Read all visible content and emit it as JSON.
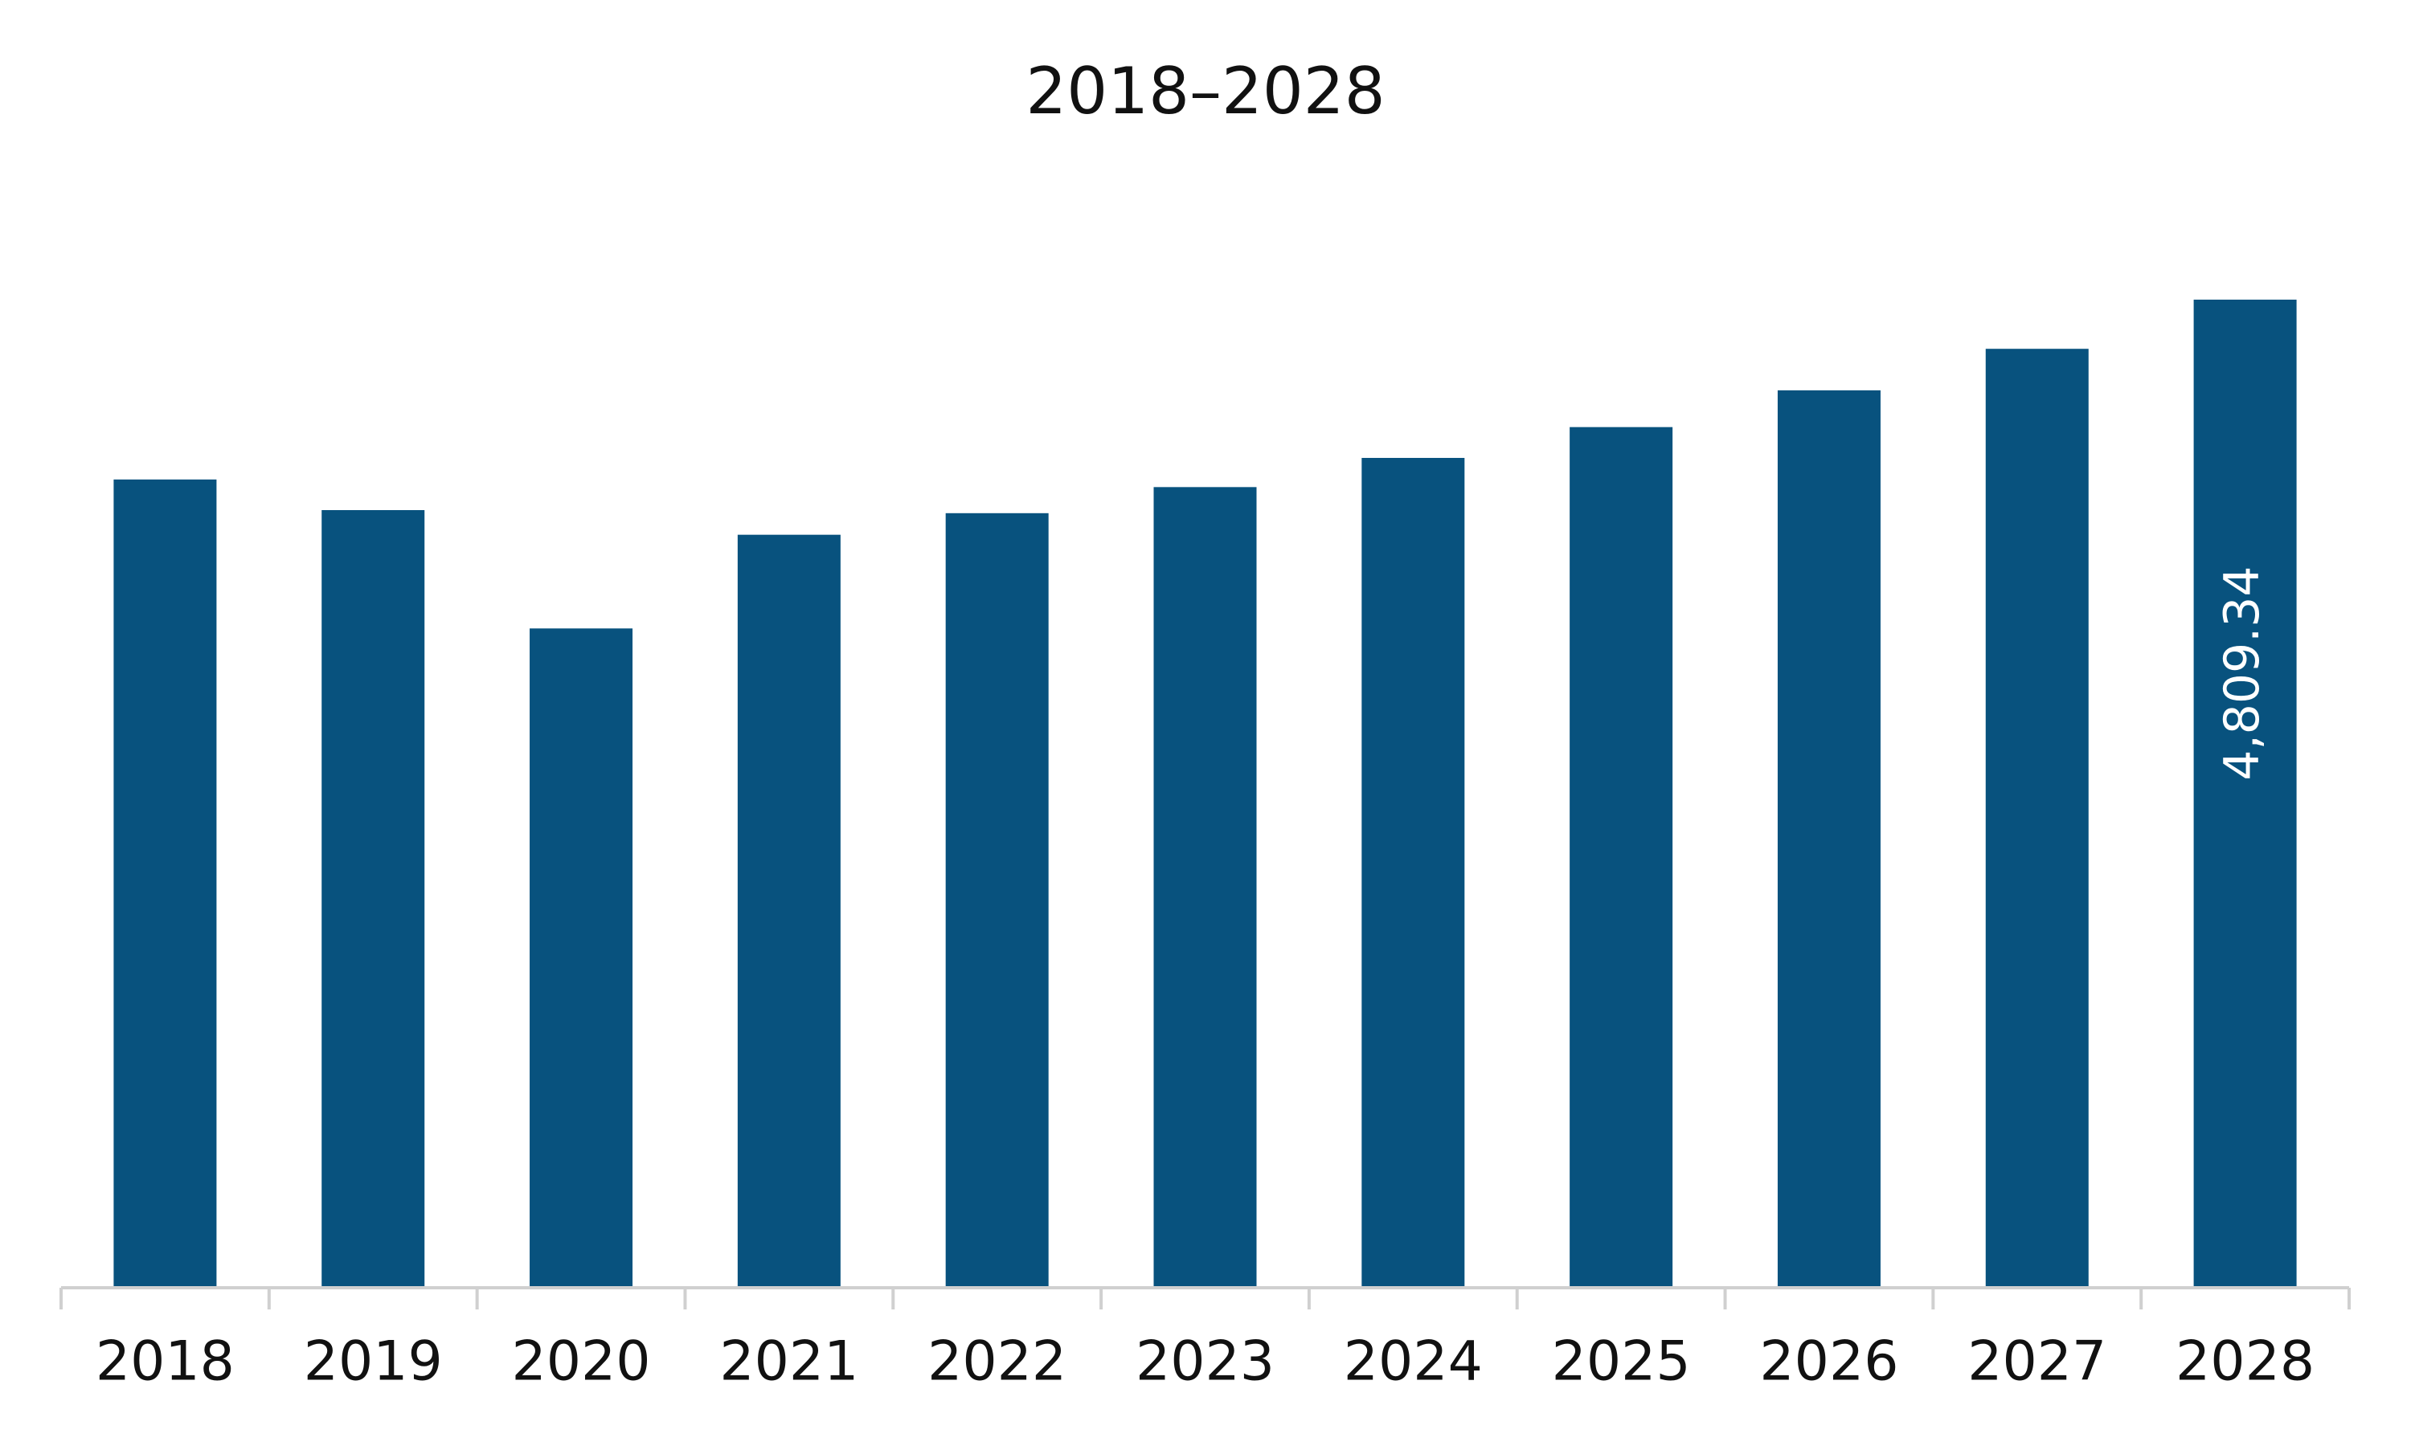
{
  "chart_data": {
    "type": "bar",
    "title": "2018–2028",
    "categories": [
      "2018",
      "2019",
      "2020",
      "2021",
      "2022",
      "2023",
      "2024",
      "2025",
      "2026",
      "2027",
      "2028"
    ],
    "values": [
      3934,
      3785,
      3209,
      3665,
      3770,
      3897,
      4039,
      4189,
      4368,
      4570,
      4809.34
    ],
    "value_labels": [
      null,
      null,
      null,
      null,
      null,
      null,
      null,
      null,
      null,
      null,
      "4,809.34"
    ],
    "color": "#08527e"
  }
}
